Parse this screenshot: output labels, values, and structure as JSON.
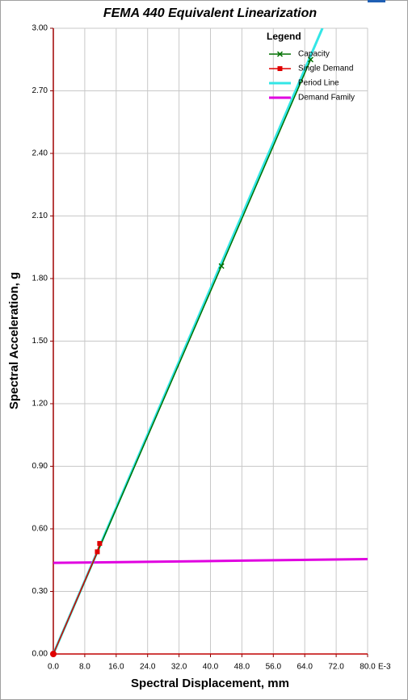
{
  "chart_data": {
    "type": "line",
    "title": "FEMA 440 Equivalent Linearization",
    "x_label": "Spectral Displacement, mm",
    "y_label": "Spectral Acceleration, g",
    "x_tick_suffix": "E-3",
    "legend_title": "Legend",
    "legend": "upper right",
    "grid": true,
    "xlim": [
      0,
      80
    ],
    "ylim": [
      0,
      3
    ],
    "xticks": [
      {
        "value": 0,
        "label": "0.0"
      },
      {
        "value": 8,
        "label": "8.0"
      },
      {
        "value": 16,
        "label": "16.0"
      },
      {
        "value": 24,
        "label": "24.0"
      },
      {
        "value": 32,
        "label": "32.0"
      },
      {
        "value": 40,
        "label": "40.0"
      },
      {
        "value": 48,
        "label": "48.0"
      },
      {
        "value": 56,
        "label": "56.0"
      },
      {
        "value": 64,
        "label": "64.0"
      },
      {
        "value": 72,
        "label": "72.0"
      },
      {
        "value": 80,
        "label": "80.0"
      }
    ],
    "yticks": [
      {
        "value": 0,
        "label": "0.00"
      },
      {
        "value": 0.3,
        "label": "0.30"
      },
      {
        "value": 0.6,
        "label": "0.60"
      },
      {
        "value": 0.9,
        "label": "0.90"
      },
      {
        "value": 1.2,
        "label": "1.20"
      },
      {
        "value": 1.5,
        "label": "1.50"
      },
      {
        "value": 1.8,
        "label": "1.80"
      },
      {
        "value": 2.1,
        "label": "2.10"
      },
      {
        "value": 2.4,
        "label": "2.40"
      },
      {
        "value": 2.7,
        "label": "2.70"
      },
      {
        "value": 3,
        "label": "3.00"
      }
    ],
    "series": [
      {
        "name": "Demand Family",
        "color": "#e000e0",
        "marker": "none",
        "x": [
          0,
          30,
          50,
          80
        ],
        "values": [
          0.437,
          0.443,
          0.448,
          0.455
        ]
      },
      {
        "name": "Period Line",
        "color": "#33e6e6",
        "marker": "none",
        "x": [
          0,
          68.5
        ],
        "values": [
          0,
          3
        ]
      },
      {
        "name": "Capacity",
        "color": "#007000",
        "marker": "x",
        "x": [
          0,
          42.8,
          65.5
        ],
        "values": [
          0,
          1.86,
          2.85
        ]
      },
      {
        "name": "Single Demand",
        "color": "#e00000",
        "marker": "square",
        "x": [
          0,
          11.2,
          11.8
        ],
        "values": [
          0,
          0.49,
          0.53
        ]
      }
    ]
  }
}
